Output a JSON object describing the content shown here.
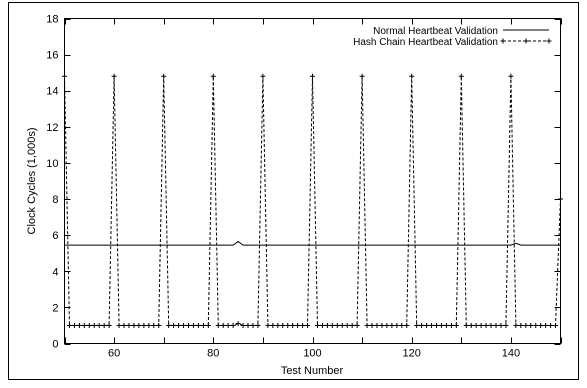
{
  "chart_data": {
    "type": "line",
    "xlabel": "Test Number",
    "ylabel": "Clock Cycles (1,000s)",
    "xlim": [
      50,
      150
    ],
    "ylim": [
      0,
      18
    ],
    "xticks": [
      60,
      80,
      100,
      120,
      140
    ],
    "yticks": [
      0,
      2,
      4,
      6,
      8,
      10,
      12,
      14,
      16,
      18
    ],
    "grid": false,
    "legend_position": "top-right",
    "series": [
      {
        "name": "Normal Heartbeat Validation",
        "style": "solid",
        "x": [
          50,
          84,
          85,
          86,
          140,
          141,
          142,
          150
        ],
        "y": [
          5.45,
          5.45,
          5.65,
          5.45,
          5.45,
          5.55,
          5.45,
          5.45
        ]
      },
      {
        "name": "Hash Chain Heartbeat Validation",
        "style": "dashed",
        "marker": "plus",
        "x": [
          50,
          51,
          52,
          53,
          54,
          55,
          56,
          57,
          58,
          59,
          60,
          61,
          62,
          63,
          64,
          65,
          66,
          67,
          68,
          69,
          70,
          71,
          72,
          73,
          74,
          75,
          76,
          77,
          78,
          79,
          80,
          81,
          82,
          83,
          84,
          85,
          86,
          87,
          88,
          89,
          90,
          91,
          92,
          93,
          94,
          95,
          96,
          97,
          98,
          99,
          100,
          101,
          102,
          103,
          104,
          105,
          106,
          107,
          108,
          109,
          110,
          111,
          112,
          113,
          114,
          115,
          116,
          117,
          118,
          119,
          120,
          121,
          122,
          123,
          124,
          125,
          126,
          127,
          128,
          129,
          130,
          131,
          132,
          133,
          134,
          135,
          136,
          137,
          138,
          139,
          140,
          141,
          142,
          143,
          144,
          145,
          146,
          147,
          148,
          149,
          150
        ],
        "y": [
          14.8,
          1.0,
          1.0,
          1.0,
          1.0,
          1.0,
          1.0,
          1.0,
          1.0,
          1.0,
          14.8,
          1.0,
          1.0,
          1.0,
          1.0,
          1.0,
          1.0,
          1.0,
          1.0,
          1.0,
          14.8,
          1.0,
          1.0,
          1.0,
          1.0,
          1.0,
          1.0,
          1.0,
          1.0,
          1.0,
          14.8,
          1.0,
          1.0,
          1.0,
          1.0,
          1.1,
          1.0,
          1.0,
          1.0,
          1.0,
          14.8,
          1.0,
          1.0,
          1.0,
          1.0,
          1.0,
          1.0,
          1.0,
          1.0,
          1.0,
          14.8,
          1.0,
          1.0,
          1.0,
          1.0,
          1.0,
          1.0,
          1.0,
          1.0,
          1.0,
          14.8,
          1.0,
          1.0,
          1.0,
          1.0,
          1.0,
          1.0,
          1.0,
          1.0,
          1.0,
          14.8,
          1.0,
          1.0,
          1.0,
          1.0,
          1.0,
          1.0,
          1.0,
          1.0,
          1.0,
          14.8,
          1.0,
          1.0,
          1.0,
          1.0,
          1.0,
          1.0,
          1.0,
          1.0,
          1.0,
          14.8,
          1.0,
          1.0,
          1.0,
          1.0,
          1.0,
          1.0,
          1.0,
          1.0,
          1.0,
          8.0
        ]
      }
    ]
  }
}
